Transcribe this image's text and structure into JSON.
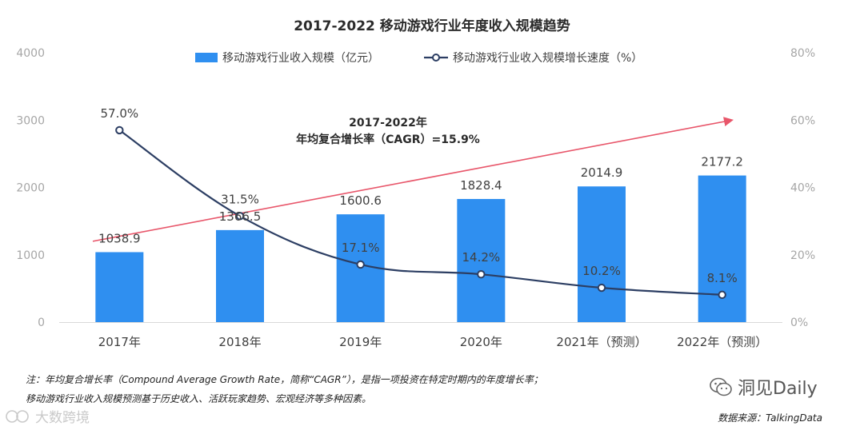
{
  "chart_data": {
    "type": "bar",
    "title": "2017-2022  移动游戏行业年度收入规模趋势",
    "categories": [
      "2017年",
      "2018年",
      "2019年",
      "2020年",
      "2021年（预测）",
      "2022年（预测）"
    ],
    "series": [
      {
        "name": "移动游戏行业收入规模（亿元）",
        "type": "bar",
        "axis": "left",
        "color": "#2f8ff0",
        "values": [
          1038.9,
          1366.5,
          1600.6,
          1828.4,
          2014.9,
          2177.2
        ],
        "labels": [
          "1038.9",
          "1366.5",
          "1600.6",
          "1828.4",
          "2014.9",
          "2177.2"
        ]
      },
      {
        "name": "移动游戏行业收入规模增长速度（%）",
        "type": "line",
        "axis": "right",
        "color": "#2c3e63",
        "values": [
          57.0,
          31.5,
          17.1,
          14.2,
          10.2,
          8.1
        ],
        "labels": [
          "57.0%",
          "31.5%",
          "17.1%",
          "14.2%",
          "10.2%",
          "8.1%"
        ]
      }
    ],
    "y_left": {
      "range": [
        0,
        4000
      ],
      "ticks": [
        "0",
        "1000",
        "2000",
        "3000",
        "4000"
      ]
    },
    "y_right": {
      "range": [
        0,
        80
      ],
      "ticks": [
        "0%",
        "20%",
        "40%",
        "60%",
        "80%"
      ]
    },
    "annotation": {
      "line1": "2017-2022年",
      "line2": "年均复合增长率（CAGR）=15.9%",
      "arrow_color": "#e8566a",
      "arrow_start_value": 1200,
      "arrow_end_value": 3000
    },
    "grid": false,
    "legend": "top-center"
  },
  "notes": {
    "line1": "注：年均复合增长率（Compound Average Growth Rate，简称“CAGR”），是指一项投资在特定时期内的年度增长率；",
    "line2": "移动游戏行业收入规模预测基于历史收入、活跃玩家趋势、宏观经济等多种因素。"
  },
  "source": "数据来源：TalkingData",
  "watermark_right": "洞见Daily",
  "watermark_left": "大数跨境"
}
